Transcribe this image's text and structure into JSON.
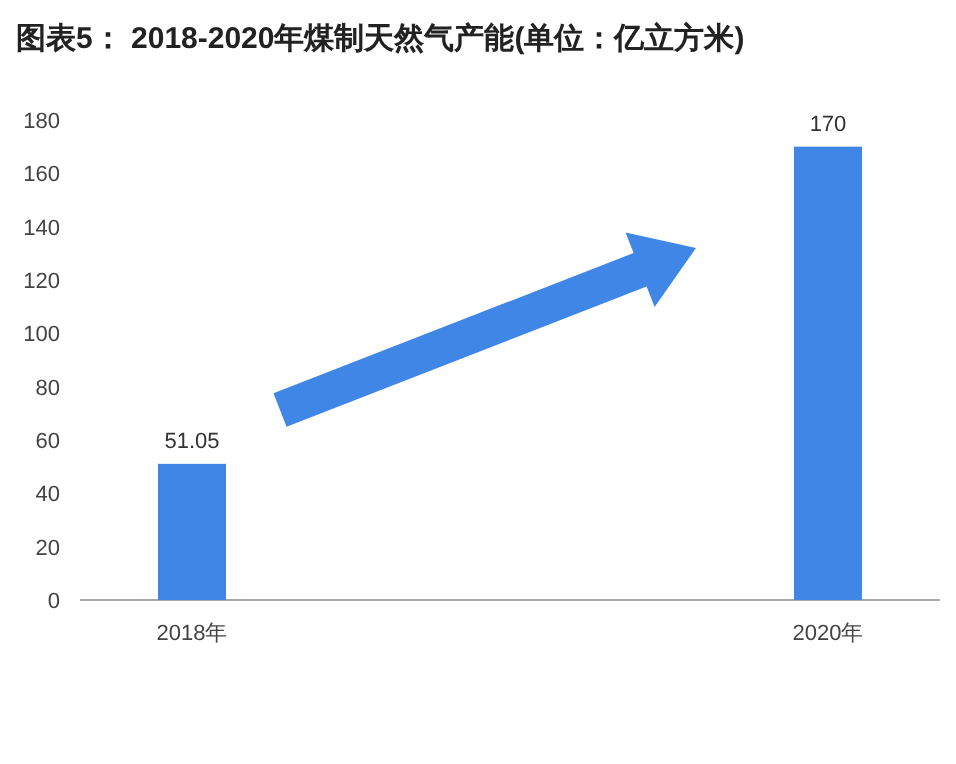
{
  "chart_data": {
    "type": "bar",
    "title": "图表5： 2018-2020年煤制天然气产能(单位：亿立方米)",
    "categories": [
      "2018年",
      "2020年"
    ],
    "values": [
      51.05,
      170
    ],
    "color": "#3f86e6",
    "ylim": [
      0,
      180
    ],
    "yticks": [
      0,
      20,
      40,
      60,
      80,
      100,
      120,
      140,
      160,
      180
    ],
    "data_labels": true,
    "grid": false
  }
}
